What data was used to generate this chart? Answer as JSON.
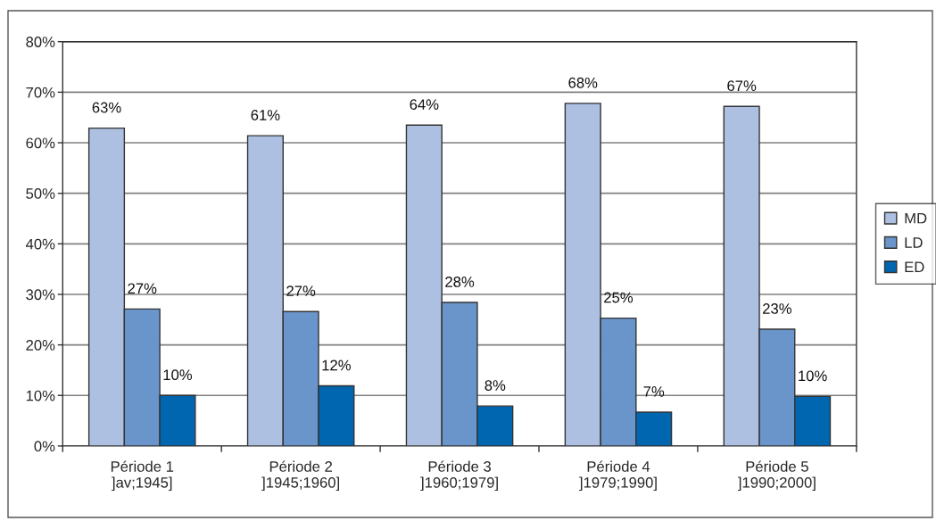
{
  "chart_data": {
    "type": "bar",
    "categories": [
      "Période 1\n]av;1945]",
      "Période 2\n]1945;1960]",
      "Période 3\n]1960;1979]",
      "Période 4\n]1979;1990]",
      "Période 5\n]1990;2000]"
    ],
    "series": [
      {
        "name": "MD",
        "color": "#aec0e2",
        "values": [
          62.9,
          61.4,
          63.5,
          67.8,
          67.2
        ],
        "value_labels": [
          "63%",
          "61%",
          "64%",
          "68%",
          "67%"
        ]
      },
      {
        "name": "LD",
        "color": "#6a95cb",
        "values": [
          27.1,
          26.6,
          28.4,
          25.3,
          23.1
        ],
        "value_labels": [
          "27%",
          "27%",
          "28%",
          "25%",
          "23%"
        ]
      },
      {
        "name": "ED",
        "color": "#0066b0",
        "values": [
          10.0,
          11.9,
          7.9,
          6.7,
          9.8
        ],
        "value_labels": [
          "10%",
          "12%",
          "8%",
          "7%",
          "10%"
        ]
      }
    ],
    "ylim": [
      0,
      80
    ],
    "yticks": [
      {
        "value": 0,
        "label": "0%"
      },
      {
        "value": 10,
        "label": "10%"
      },
      {
        "value": 20,
        "label": "20%"
      },
      {
        "value": 30,
        "label": "30%"
      },
      {
        "value": 40,
        "label": "40%"
      },
      {
        "value": 50,
        "label": "50%"
      },
      {
        "value": 60,
        "label": "60%"
      },
      {
        "value": 70,
        "label": "70%"
      },
      {
        "value": 80,
        "label": "80%"
      }
    ],
    "grid": "y",
    "legend": "right"
  }
}
